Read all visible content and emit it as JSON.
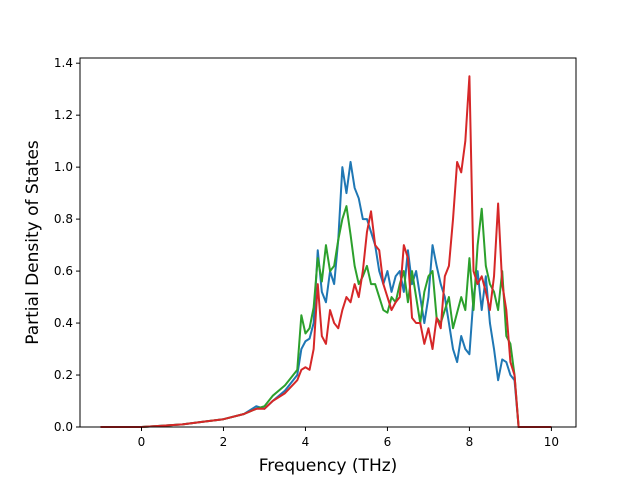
{
  "chart_data": {
    "type": "line",
    "xlabel": "Frequency (THz)",
    "ylabel": "Partial Density of States",
    "xlim": [
      -1.5,
      10.6
    ],
    "ylim": [
      0.0,
      1.42
    ],
    "xticks": [
      0,
      2,
      4,
      6,
      8,
      10
    ],
    "yticks": [
      0.0,
      0.2,
      0.4,
      0.6,
      0.8,
      1.0,
      1.2,
      1.4
    ],
    "grid": false,
    "series": [
      {
        "color": "#1f77b4",
        "x": [
          -1.0,
          0.0,
          0.5,
          1.0,
          1.5,
          2.0,
          2.5,
          2.8,
          3.0,
          3.2,
          3.5,
          3.8,
          3.9,
          4.0,
          4.1,
          4.2,
          4.3,
          4.4,
          4.5,
          4.6,
          4.7,
          4.8,
          4.9,
          5.0,
          5.1,
          5.2,
          5.3,
          5.4,
          5.5,
          5.6,
          5.7,
          5.8,
          5.9,
          6.0,
          6.1,
          6.2,
          6.3,
          6.4,
          6.5,
          6.6,
          6.7,
          6.8,
          6.9,
          7.0,
          7.1,
          7.2,
          7.3,
          7.4,
          7.5,
          7.6,
          7.7,
          7.8,
          7.9,
          8.0,
          8.1,
          8.2,
          8.3,
          8.4,
          8.5,
          8.6,
          8.7,
          8.8,
          8.9,
          9.0,
          9.1,
          9.2,
          9.3,
          10.0
        ],
        "y": [
          0.0,
          0.0,
          0.005,
          0.01,
          0.02,
          0.03,
          0.05,
          0.08,
          0.07,
          0.1,
          0.14,
          0.2,
          0.3,
          0.33,
          0.34,
          0.4,
          0.68,
          0.52,
          0.48,
          0.6,
          0.55,
          0.72,
          1.0,
          0.9,
          1.02,
          0.92,
          0.88,
          0.8,
          0.8,
          0.75,
          0.7,
          0.6,
          0.55,
          0.6,
          0.52,
          0.58,
          0.6,
          0.52,
          0.68,
          0.55,
          0.6,
          0.5,
          0.4,
          0.5,
          0.7,
          0.62,
          0.55,
          0.5,
          0.4,
          0.3,
          0.25,
          0.35,
          0.3,
          0.28,
          0.5,
          0.6,
          0.45,
          0.58,
          0.4,
          0.3,
          0.18,
          0.26,
          0.25,
          0.2,
          0.18,
          0.0,
          0.0,
          0.0
        ]
      },
      {
        "color": "#2ca02c",
        "x": [
          -1.0,
          0.0,
          0.5,
          1.0,
          1.5,
          2.0,
          2.5,
          2.8,
          3.0,
          3.2,
          3.5,
          3.8,
          3.9,
          4.0,
          4.1,
          4.2,
          4.3,
          4.4,
          4.5,
          4.6,
          4.7,
          4.8,
          4.9,
          5.0,
          5.1,
          5.2,
          5.3,
          5.4,
          5.5,
          5.6,
          5.7,
          5.8,
          5.9,
          6.0,
          6.1,
          6.2,
          6.3,
          6.4,
          6.5,
          6.6,
          6.7,
          6.8,
          6.9,
          7.0,
          7.1,
          7.2,
          7.3,
          7.4,
          7.5,
          7.6,
          7.7,
          7.8,
          7.9,
          8.0,
          8.1,
          8.2,
          8.3,
          8.4,
          8.5,
          8.6,
          8.7,
          8.8,
          8.9,
          9.0,
          9.1,
          9.2,
          9.3,
          10.0
        ],
        "y": [
          0.0,
          0.0,
          0.005,
          0.01,
          0.02,
          0.03,
          0.05,
          0.07,
          0.08,
          0.12,
          0.16,
          0.22,
          0.43,
          0.36,
          0.38,
          0.46,
          0.65,
          0.56,
          0.7,
          0.6,
          0.62,
          0.72,
          0.8,
          0.85,
          0.74,
          0.62,
          0.55,
          0.58,
          0.62,
          0.55,
          0.55,
          0.5,
          0.45,
          0.44,
          0.5,
          0.48,
          0.55,
          0.6,
          0.48,
          0.6,
          0.5,
          0.4,
          0.52,
          0.58,
          0.6,
          0.42,
          0.4,
          0.45,
          0.5,
          0.38,
          0.44,
          0.5,
          0.45,
          0.65,
          0.45,
          0.7,
          0.84,
          0.62,
          0.55,
          0.52,
          0.45,
          0.6,
          0.35,
          0.32,
          0.2,
          0.0,
          0.0,
          0.0
        ]
      },
      {
        "color": "#d62728",
        "x": [
          -1.0,
          0.0,
          0.5,
          1.0,
          1.5,
          2.0,
          2.5,
          2.8,
          3.0,
          3.2,
          3.5,
          3.8,
          3.9,
          4.0,
          4.1,
          4.2,
          4.3,
          4.4,
          4.5,
          4.6,
          4.7,
          4.8,
          4.9,
          5.0,
          5.1,
          5.2,
          5.3,
          5.4,
          5.5,
          5.6,
          5.7,
          5.8,
          5.9,
          6.0,
          6.1,
          6.2,
          6.3,
          6.4,
          6.5,
          6.6,
          6.7,
          6.8,
          6.9,
          7.0,
          7.1,
          7.2,
          7.3,
          7.4,
          7.5,
          7.6,
          7.7,
          7.8,
          7.9,
          8.0,
          8.1,
          8.2,
          8.3,
          8.4,
          8.5,
          8.6,
          8.7,
          8.8,
          8.9,
          9.0,
          9.1,
          9.2,
          9.3,
          10.0
        ],
        "y": [
          0.0,
          0.0,
          0.005,
          0.01,
          0.02,
          0.03,
          0.05,
          0.07,
          0.07,
          0.1,
          0.13,
          0.18,
          0.22,
          0.23,
          0.22,
          0.3,
          0.55,
          0.35,
          0.32,
          0.45,
          0.4,
          0.38,
          0.45,
          0.5,
          0.48,
          0.55,
          0.5,
          0.6,
          0.75,
          0.83,
          0.7,
          0.68,
          0.55,
          0.5,
          0.45,
          0.48,
          0.5,
          0.7,
          0.65,
          0.42,
          0.4,
          0.4,
          0.32,
          0.38,
          0.3,
          0.42,
          0.38,
          0.58,
          0.62,
          0.8,
          1.02,
          0.98,
          1.1,
          1.35,
          0.6,
          0.55,
          0.58,
          0.52,
          0.45,
          0.58,
          0.86,
          0.55,
          0.45,
          0.25,
          0.2,
          0.0,
          0.0,
          0.0
        ]
      }
    ]
  }
}
